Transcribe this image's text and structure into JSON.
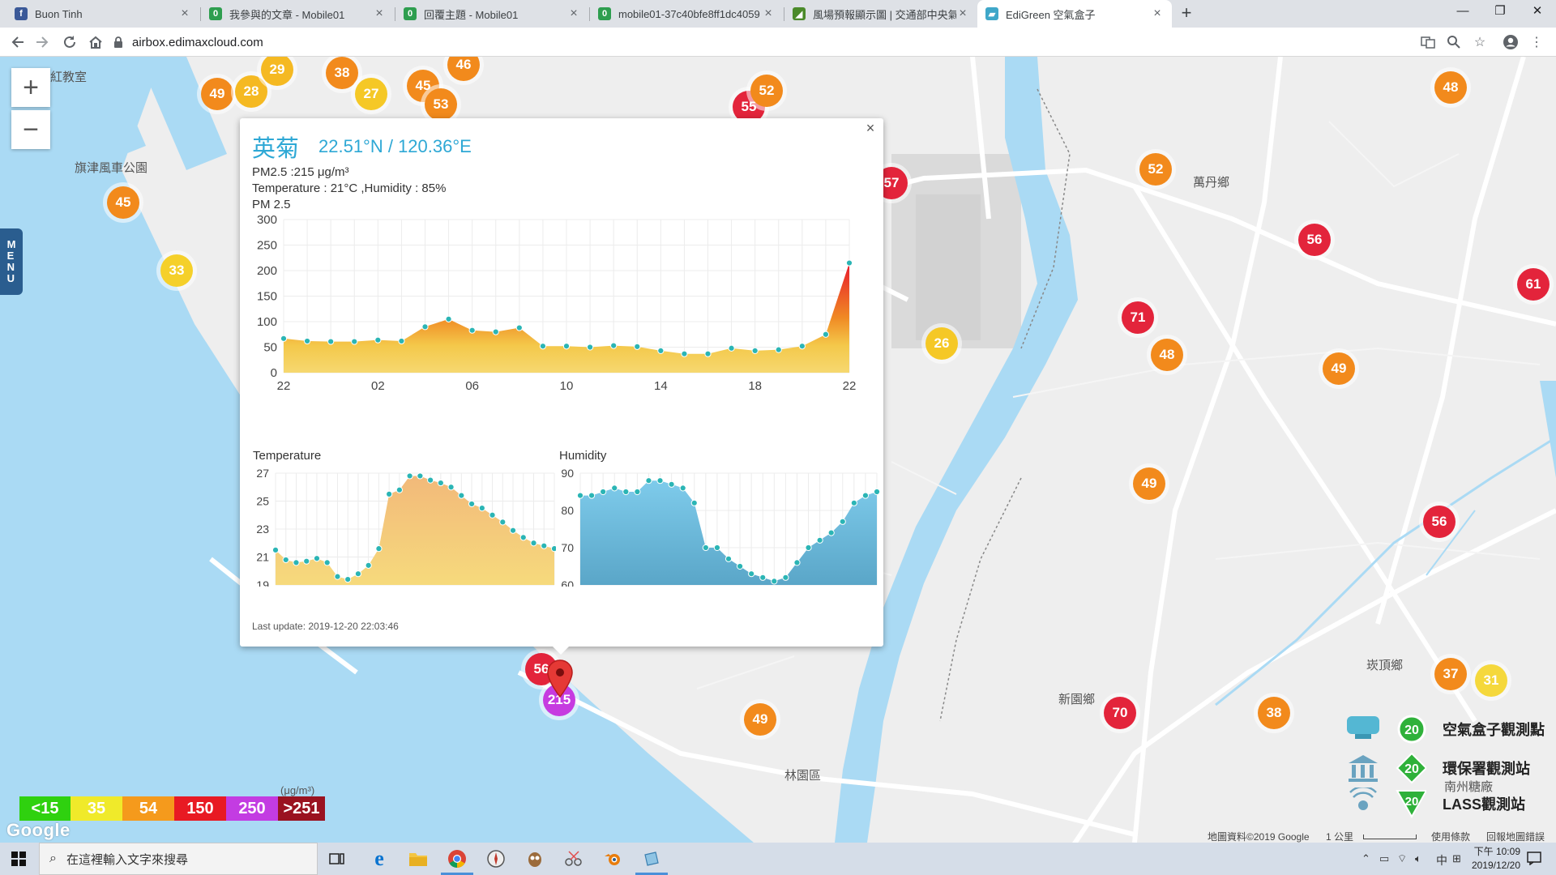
{
  "tabs": [
    {
      "title": "Buon Tinh",
      "icon": "facebook-icon",
      "color": "#3b5998"
    },
    {
      "title": "我參與的文章 - Mobile01",
      "icon": "mobile01-icon",
      "color": "#2e9e4f"
    },
    {
      "title": "回覆主題 - Mobile01",
      "icon": "mobile01-icon",
      "color": "#2e9e4f"
    },
    {
      "title": "mobile01-37c40bfe8ff1dc4059",
      "icon": "mobile01-icon",
      "color": "#2e9e4f"
    },
    {
      "title": "風場預報顯示圖 | 交通部中央氣象",
      "icon": "cwb-icon",
      "color": "#4b8a2a"
    },
    {
      "title": "EdiGreen 空氣盒子",
      "icon": "edigreen-icon",
      "color": "#3fa7c9"
    }
  ],
  "address": {
    "url": "airbox.edimaxcloud.com"
  },
  "popup": {
    "station": "英菊",
    "coords": "22.51°N / 120.36°E",
    "pm_line": "PM2.5 :215 μg/m³",
    "temp_line": "Temperature : 21°C ,Humidity : 85%",
    "chart_title": "PM 2.5",
    "temp_title": "Temperature",
    "hum_title": "Humidity",
    "last_update": "Last update: 2019-12-20 22:03:46"
  },
  "chart_data": [
    {
      "type": "area",
      "title": "PM 2.5",
      "ylim": [
        0,
        300
      ],
      "yticks": [
        0,
        50,
        100,
        150,
        200,
        250,
        300
      ],
      "xtick_labels": [
        "22",
        "02",
        "06",
        "10",
        "14",
        "18",
        "22"
      ],
      "values": [
        67,
        62,
        61,
        61,
        64,
        62,
        90,
        105,
        83,
        80,
        88,
        52,
        52,
        50,
        53,
        51,
        43,
        37,
        37,
        48,
        43,
        45,
        52,
        75,
        215
      ]
    },
    {
      "type": "area",
      "title": "Temperature",
      "ylim": [
        19,
        27
      ],
      "yticks": [
        19,
        21,
        23,
        25,
        27
      ],
      "values": [
        21.5,
        20.8,
        20.6,
        20.7,
        20.9,
        20.6,
        19.6,
        19.4,
        19.8,
        20.4,
        21.6,
        25.5,
        25.8,
        26.8,
        26.8,
        26.5,
        26.3,
        26.0,
        25.4,
        24.8,
        24.5,
        24.0,
        23.5,
        22.9,
        22.4,
        22.0,
        21.8,
        21.6
      ]
    },
    {
      "type": "area",
      "title": "Humidity",
      "ylim": [
        60,
        90
      ],
      "yticks": [
        60,
        70,
        80,
        90
      ],
      "values": [
        84,
        84,
        85,
        86,
        85,
        85,
        88,
        88,
        87,
        86,
        82,
        70,
        70,
        67,
        65,
        63,
        62,
        61,
        62,
        66,
        70,
        72,
        74,
        77,
        82,
        84,
        85
      ]
    }
  ],
  "map_markers": [
    {
      "value": "49",
      "color": "#f28a1c"
    },
    {
      "value": "28",
      "color": "#f5b922"
    },
    {
      "value": "29",
      "color": "#f5b922"
    },
    {
      "value": "38",
      "color": "#f28a1c"
    },
    {
      "value": "27",
      "color": "#f5c826"
    },
    {
      "value": "45",
      "color": "#f28a1c"
    },
    {
      "value": "53",
      "color": "#f28a1c"
    },
    {
      "value": "46",
      "color": "#f28a1c"
    },
    {
      "value": "55",
      "color": "#e3243b"
    },
    {
      "value": "52",
      "color": "#f28a1c"
    },
    {
      "value": "45",
      "color": "#f28a1c"
    },
    {
      "value": "33",
      "color": "#f5d02a"
    },
    {
      "value": "57",
      "color": "#e3243b"
    },
    {
      "value": "26",
      "color": "#f5c826"
    },
    {
      "value": "52",
      "color": "#f28a1c"
    },
    {
      "value": "56",
      "color": "#e3243b"
    },
    {
      "value": "48",
      "color": "#f28a1c"
    },
    {
      "value": "61",
      "color": "#e3243b"
    },
    {
      "value": "71",
      "color": "#e3243b"
    },
    {
      "value": "48",
      "color": "#f28a1c"
    },
    {
      "value": "49",
      "color": "#f28a1c"
    },
    {
      "value": "49",
      "color": "#f28a1c"
    },
    {
      "value": "56",
      "color": "#e3243b"
    },
    {
      "value": "56",
      "color": "#e3243b"
    },
    {
      "value": "215",
      "color": "#c63be0"
    },
    {
      "value": "49",
      "color": "#f28a1c"
    },
    {
      "value": "70",
      "color": "#e3243b"
    },
    {
      "value": "38",
      "color": "#f28a1c"
    },
    {
      "value": "37",
      "color": "#f28a1c"
    },
    {
      "value": "31",
      "color": "#f5d83c"
    }
  ],
  "map_labels": [
    "旗津風車公園",
    "萬丹鄉",
    "新園鄉",
    "崁頂鄉",
    "林園區",
    "南州糖廠",
    "紅教室"
  ],
  "aq_legend": [
    {
      "label": "<15",
      "color": "#2fd10f"
    },
    {
      "label": "35",
      "color": "#f0ea2a"
    },
    {
      "label": "54",
      "color": "#f59a1c"
    },
    {
      "label": "150",
      "color": "#e81a23"
    },
    {
      "label": "250",
      "color": "#c33ce2"
    },
    {
      "label": ">251",
      "color": "#9a1220"
    }
  ],
  "aq_unit": "(μg/m³)",
  "station_legend": [
    {
      "value": "20",
      "label": "空氣盒子觀測點",
      "color": "#2fb13a"
    },
    {
      "value": "20",
      "label": "環保署觀測站",
      "color": "#2fb13a"
    },
    {
      "value": "20",
      "label": "LASS觀測站",
      "color": "#2fb13a"
    }
  ],
  "map_ui": {
    "menu": "MENU",
    "zoom_in": "+",
    "zoom_out": "−",
    "google": "Google"
  },
  "attribution": {
    "data": "地圖資料©2019 Google",
    "scale": "1 公里",
    "terms": "使用條款",
    "report": "回報地圖錯誤"
  },
  "taskbar": {
    "search_placeholder": "在這裡輸入文字來搜尋",
    "time": "下午 10:09",
    "date": "2019/12/20",
    "ime": "中"
  }
}
